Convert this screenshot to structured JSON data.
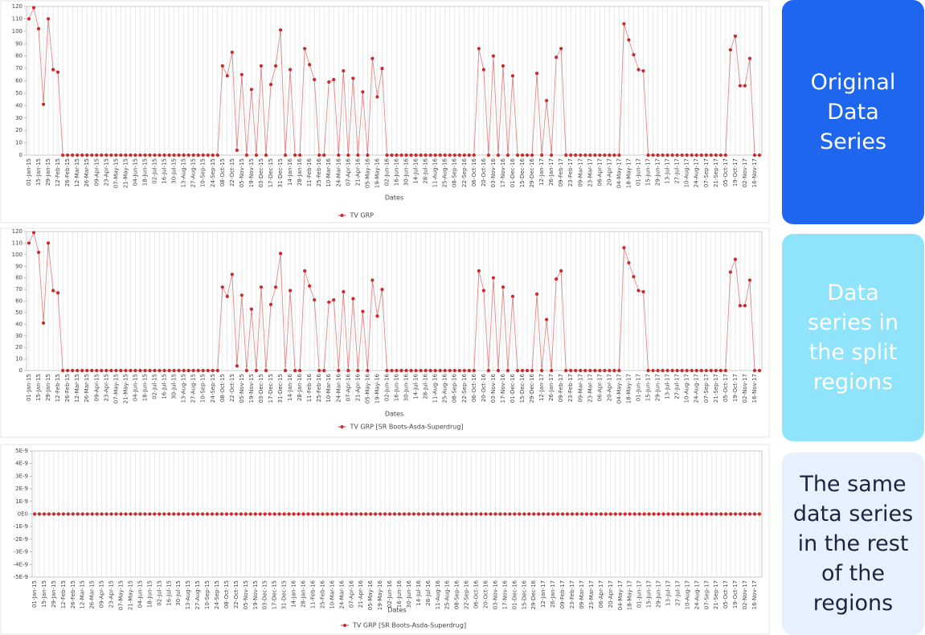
{
  "chart_data": [
    {
      "type": "line",
      "x_label": "Dates",
      "grid": true,
      "legend": "bottom",
      "categories": [
        "01-Jan-15",
        null,
        "15-Jan-15",
        null,
        "29-Jan-15",
        null,
        "12-Feb-15",
        null,
        "26-Feb-15",
        null,
        "12-Mar-15",
        null,
        "26-Mar-15",
        null,
        "09-Apr-15",
        null,
        "23-Apr-15",
        null,
        "07-May-15",
        null,
        "21-May-15",
        null,
        "04-Jun-15",
        null,
        "18-Jun-15",
        null,
        "02-Jul-15",
        null,
        "16-Jul-15",
        null,
        "30-Jul-15",
        null,
        "13-Aug-15",
        null,
        "27-Aug-15",
        null,
        "10-Sep-15",
        null,
        "24-Sep-15",
        null,
        "08-Oct-15",
        null,
        "22-Oct-15",
        null,
        "05-Nov-15",
        null,
        "19-Nov-15",
        null,
        "03-Dec-15",
        null,
        "17-Dec-15",
        null,
        "31-Dec-15",
        null,
        "14-Jan-16",
        null,
        "28-Jan-16",
        null,
        "11-Feb-16",
        null,
        "25-Feb-16",
        null,
        "10-Mar-16",
        null,
        "24-Mar-16",
        null,
        "07-Apr-16",
        null,
        "21-Apr-16",
        null,
        "05-May-16",
        null,
        "19-May-16",
        null,
        "02-Jun-16",
        null,
        "16-Jun-16",
        null,
        "30-Jun-16",
        null,
        "14-Jul-16",
        null,
        "28-Jul-16",
        null,
        "11-Aug-16",
        null,
        "25-Aug-16",
        null,
        "08-Sep-16",
        null,
        "22-Sep-16",
        null,
        "06-Oct-16",
        null,
        "20-Oct-16",
        null,
        "03-Nov-16",
        null,
        "17-Nov-16",
        null,
        "01-Dec-16",
        null,
        "15-Dec-16",
        null,
        "29-Dec-16",
        null,
        "12-Jan-17",
        null,
        "26-Jan-17",
        null,
        "09-Feb-17",
        null,
        "23-Feb-17",
        null,
        "09-Mar-17",
        null,
        "23-Mar-17",
        null,
        "06-Apr-17",
        null,
        "20-Apr-17",
        null,
        "04-May-17",
        null,
        "18-May-17",
        null,
        "01-Jun-17",
        null,
        "15-Jun-17",
        null,
        "29-Jun-17",
        null,
        "13-Jul-17",
        null,
        "27-Jul-17",
        null,
        "10-Aug-17",
        null,
        "24-Aug-17",
        null,
        "07-Sep-17",
        null,
        "21-Sep-17",
        null,
        "05-Oct-17",
        null,
        "19-Oct-17",
        null,
        "02-Nov-17",
        null,
        "16-Nov-17",
        null
      ],
      "series": [
        {
          "name": "TV GRP",
          "color": "#cc2a2a",
          "values": [
            110,
            119,
            102,
            41,
            110,
            69,
            67,
            0,
            0,
            0,
            0,
            0,
            0,
            0,
            0,
            0,
            0,
            0,
            0,
            0,
            0,
            0,
            0,
            0,
            0,
            0,
            0,
            0,
            0,
            0,
            0,
            0,
            0,
            0,
            0,
            0,
            0,
            0,
            0,
            0,
            72,
            64,
            83,
            4,
            65,
            0,
            53,
            0,
            72,
            0,
            57,
            72,
            101,
            0,
            69,
            0,
            0,
            86,
            73,
            61,
            0,
            0,
            59,
            61,
            0,
            68,
            0,
            62,
            0,
            51,
            0,
            78,
            47,
            70,
            0,
            0,
            0,
            0,
            0,
            0,
            0,
            0,
            0,
            0,
            0,
            0,
            0,
            0,
            0,
            0,
            0,
            0,
            0,
            86,
            69,
            0,
            80,
            0,
            72,
            0,
            64,
            0,
            0,
            0,
            0,
            66,
            0,
            44,
            0,
            79,
            86,
            0,
            0,
            0,
            0,
            0,
            0,
            0,
            0,
            0,
            0,
            0,
            0,
            106,
            93,
            81,
            69,
            68,
            0,
            0,
            0,
            0,
            0,
            0,
            0,
            0,
            0,
            0,
            0,
            0,
            0,
            0,
            0,
            0,
            0,
            85,
            96,
            56,
            56,
            78,
            0,
            0
          ]
        }
      ],
      "ylim": [
        0,
        120
      ],
      "yticks": [
        0,
        10,
        20,
        30,
        40,
        50,
        60,
        70,
        80,
        90,
        100,
        110,
        120
      ]
    },
    {
      "type": "line",
      "x_label": "Dates",
      "grid": true,
      "legend": "bottom",
      "categories": [
        "01-Jan-15",
        null,
        "15-Jan-15",
        null,
        "29-Jan-15",
        null,
        "12-Feb-15",
        null,
        "26-Feb-15",
        null,
        "12-Mar-15",
        null,
        "26-Mar-15",
        null,
        "09-Apr-15",
        null,
        "23-Apr-15",
        null,
        "07-May-15",
        null,
        "21-May-15",
        null,
        "04-Jun-15",
        null,
        "18-Jun-15",
        null,
        "02-Jul-15",
        null,
        "16-Jul-15",
        null,
        "30-Jul-15",
        null,
        "13-Aug-15",
        null,
        "27-Aug-15",
        null,
        "10-Sep-15",
        null,
        "24-Sep-15",
        null,
        "08-Oct-15",
        null,
        "22-Oct-15",
        null,
        "05-Nov-15",
        null,
        "19-Nov-15",
        null,
        "03-Dec-15",
        null,
        "17-Dec-15",
        null,
        "31-Dec-15",
        null,
        "14-Jan-16",
        null,
        "28-Jan-16",
        null,
        "11-Feb-16",
        null,
        "25-Feb-16",
        null,
        "10-Mar-16",
        null,
        "24-Mar-16",
        null,
        "07-Apr-16",
        null,
        "21-Apr-16",
        null,
        "05-May-16",
        null,
        "19-May-16",
        null,
        "02-Jun-16",
        null,
        "16-Jun-16",
        null,
        "30-Jun-16",
        null,
        "14-Jul-16",
        null,
        "28-Jul-16",
        null,
        "11-Aug-16",
        null,
        "25-Aug-16",
        null,
        "08-Sep-16",
        null,
        "22-Sep-16",
        null,
        "06-Oct-16",
        null,
        "20-Oct-16",
        null,
        "03-Nov-16",
        null,
        "17-Nov-16",
        null,
        "01-Dec-16",
        null,
        "15-Dec-16",
        null,
        "29-Dec-16",
        null,
        "12-Jan-17",
        null,
        "26-Jan-17",
        null,
        "09-Feb-17",
        null,
        "23-Feb-17",
        null,
        "09-Mar-17",
        null,
        "23-Mar-17",
        null,
        "06-Apr-17",
        null,
        "20-Apr-17",
        null,
        "04-May-17",
        null,
        "18-May-17",
        null,
        "01-Jun-17",
        null,
        "15-Jun-17",
        null,
        "29-Jun-17",
        null,
        "13-Jul-17",
        null,
        "27-Jul-17",
        null,
        "10-Aug-17",
        null,
        "24-Aug-17",
        null,
        "07-Sep-17",
        null,
        "21-Sep-17",
        null,
        "05-Oct-17",
        null,
        "19-Oct-17",
        null,
        "02-Nov-17",
        null,
        "16-Nov-17",
        null
      ],
      "series": [
        {
          "name": "TV GRP [SR Boots-Asda-Superdrug]",
          "color": "#cc2a2a",
          "values": [
            110,
            119,
            102,
            41,
            110,
            69,
            67,
            0,
            0,
            0,
            0,
            0,
            0,
            0,
            0,
            0,
            0,
            0,
            0,
            0,
            0,
            0,
            0,
            0,
            0,
            0,
            0,
            0,
            0,
            0,
            0,
            0,
            0,
            0,
            0,
            0,
            0,
            0,
            0,
            0,
            72,
            64,
            83,
            4,
            65,
            0,
            53,
            0,
            72,
            0,
            57,
            72,
            101,
            0,
            69,
            0,
            0,
            86,
            73,
            61,
            0,
            0,
            59,
            61,
            0,
            68,
            0,
            62,
            0,
            51,
            0,
            78,
            47,
            70,
            0,
            0,
            0,
            0,
            0,
            0,
            0,
            0,
            0,
            0,
            0,
            0,
            0,
            0,
            0,
            0,
            0,
            0,
            0,
            86,
            69,
            0,
            80,
            0,
            72,
            0,
            64,
            0,
            0,
            0,
            0,
            66,
            0,
            44,
            0,
            79,
            86,
            0,
            0,
            0,
            0,
            0,
            0,
            0,
            0,
            0,
            0,
            0,
            0,
            106,
            93,
            81,
            69,
            68,
            0,
            0,
            0,
            0,
            0,
            0,
            0,
            0,
            0,
            0,
            0,
            0,
            0,
            0,
            0,
            0,
            0,
            85,
            96,
            56,
            56,
            78,
            0,
            0
          ]
        }
      ],
      "ylim": [
        0,
        120
      ],
      "yticks": [
        0,
        10,
        20,
        30,
        40,
        50,
        60,
        70,
        80,
        90,
        100,
        110,
        120
      ]
    },
    {
      "type": "line",
      "x_label": "Dates",
      "grid": true,
      "legend": "bottom",
      "categories": [
        "01-Jan-15",
        null,
        "15-Jan-15",
        null,
        "29-Jan-15",
        null,
        "12-Feb-15",
        null,
        "26-Feb-15",
        null,
        "12-Mar-15",
        null,
        "26-Mar-15",
        null,
        "09-Apr-15",
        null,
        "23-Apr-15",
        null,
        "07-May-15",
        null,
        "21-May-15",
        null,
        "04-Jun-15",
        null,
        "18-Jun-15",
        null,
        "02-Jul-15",
        null,
        "16-Jul-15",
        null,
        "30-Jul-15",
        null,
        "13-Aug-15",
        null,
        "27-Aug-15",
        null,
        "10-Sep-15",
        null,
        "24-Sep-15",
        null,
        "08-Oct-15",
        null,
        "22-Oct-15",
        null,
        "05-Nov-15",
        null,
        "19-Nov-15",
        null,
        "03-Dec-15",
        null,
        "17-Dec-15",
        null,
        "31-Dec-15",
        null,
        "14-Jan-16",
        null,
        "28-Jan-16",
        null,
        "11-Feb-16",
        null,
        "25-Feb-16",
        null,
        "10-Mar-16",
        null,
        "24-Mar-16",
        null,
        "07-Apr-16",
        null,
        "21-Apr-16",
        null,
        "05-May-16",
        null,
        "19-May-16",
        null,
        "02-Jun-16",
        null,
        "16-Jun-16",
        null,
        "30-Jun-16",
        null,
        "14-Jul-16",
        null,
        "28-Jul-16",
        null,
        "11-Aug-16",
        null,
        "25-Aug-16",
        null,
        "08-Sep-16",
        null,
        "22-Sep-16",
        null,
        "06-Oct-16",
        null,
        "20-Oct-16",
        null,
        "03-Nov-16",
        null,
        "17-Nov-16",
        null,
        "01-Dec-16",
        null,
        "15-Dec-16",
        null,
        "29-Dec-16",
        null,
        "12-Jan-17",
        null,
        "26-Jan-17",
        null,
        "09-Feb-17",
        null,
        "23-Feb-17",
        null,
        "09-Mar-17",
        null,
        "23-Mar-17",
        null,
        "06-Apr-17",
        null,
        "20-Apr-17",
        null,
        "04-May-17",
        null,
        "18-May-17",
        null,
        "01-Jun-17",
        null,
        "15-Jun-17",
        null,
        "29-Jun-17",
        null,
        "13-Jul-17",
        null,
        "27-Jul-17",
        null,
        "10-Aug-17",
        null,
        "24-Aug-17",
        null,
        "07-Sep-17",
        null,
        "21-Sep-17",
        null,
        "05-Oct-17",
        null,
        "19-Oct-17",
        null,
        "02-Nov-17",
        null,
        "16-Nov-17",
        null
      ],
      "series": [
        {
          "name": "TV GRP [SR Boots-Asda-Superdrug]",
          "color": "#cc2a2a",
          "values": [
            0,
            0,
            0,
            0,
            0,
            0,
            0,
            0,
            0,
            0,
            0,
            0,
            0,
            0,
            0,
            0,
            0,
            0,
            0,
            0,
            0,
            0,
            0,
            0,
            0,
            0,
            0,
            0,
            0,
            0,
            0,
            0,
            0,
            0,
            0,
            0,
            0,
            0,
            0,
            0,
            0,
            0,
            0,
            0,
            0,
            0,
            0,
            0,
            0,
            0,
            0,
            0,
            0,
            0,
            0,
            0,
            0,
            0,
            0,
            0,
            0,
            0,
            0,
            0,
            0,
            0,
            0,
            0,
            0,
            0,
            0,
            0,
            0,
            0,
            0,
            0,
            0,
            0,
            0,
            0,
            0,
            0,
            0,
            0,
            0,
            0,
            0,
            0,
            0,
            0,
            0,
            0,
            0,
            0,
            0,
            0,
            0,
            0,
            0,
            0,
            0,
            0,
            0,
            0,
            0,
            0,
            0,
            0,
            0,
            0,
            0,
            0,
            0,
            0,
            0,
            0,
            0,
            0,
            0,
            0,
            0,
            0,
            0,
            0,
            0,
            0,
            0,
            0,
            0,
            0,
            0,
            0,
            0,
            0,
            0,
            0,
            0,
            0,
            0,
            0,
            0,
            0,
            0,
            0,
            0,
            0,
            0,
            0,
            0,
            0,
            0,
            0
          ]
        }
      ],
      "ylim": [
        -5e-09,
        5e-09
      ],
      "yticks": [
        {
          "value": -5e-09,
          "label": "-5E-9"
        },
        {
          "value": -4e-09,
          "label": "-4E-9"
        },
        {
          "value": -3e-09,
          "label": "-3E-9"
        },
        {
          "value": -2e-09,
          "label": "-2E-9"
        },
        {
          "value": -1e-09,
          "label": "-1E-9"
        },
        {
          "value": 0,
          "label": "0E0"
        },
        {
          "value": 1e-09,
          "label": "1E-9"
        },
        {
          "value": 2e-09,
          "label": "2E-9"
        },
        {
          "value": 3e-09,
          "label": "3E-9"
        },
        {
          "value": 4e-09,
          "label": "4E-9"
        },
        {
          "value": 5e-09,
          "label": "5E-9"
        }
      ]
    }
  ],
  "panels": [
    {
      "lines": [
        "Original",
        "Data",
        "Series"
      ]
    },
    {
      "lines": [
        "Data",
        "series in",
        "the split",
        "regions"
      ]
    },
    {
      "lines": [
        "The same",
        "data series",
        "in the rest",
        "of the",
        "regions"
      ]
    }
  ]
}
